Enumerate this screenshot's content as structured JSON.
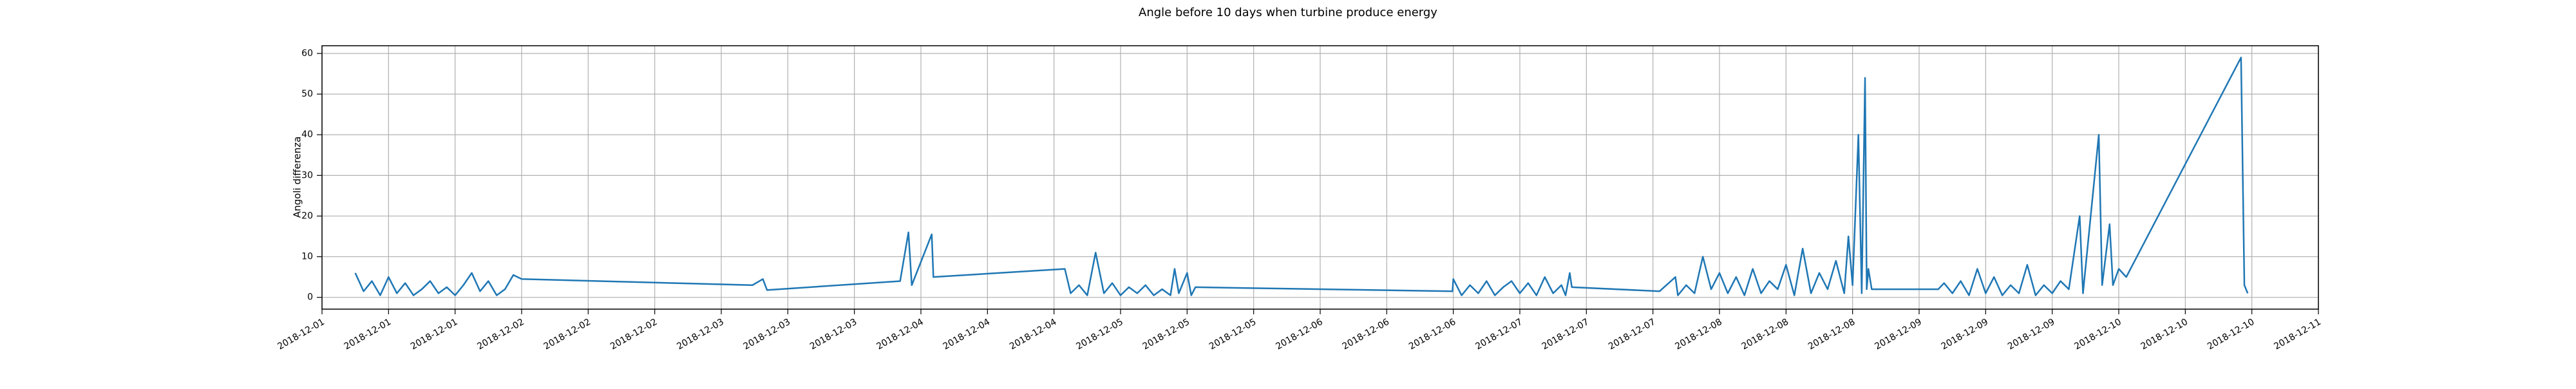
{
  "chart_data": {
    "type": "line",
    "title": "Angle before 10 days when turbine produce energy",
    "y_label": "Angoli differenza",
    "grid": true,
    "xlim": [
      "2018-12-01 00:00",
      "2018-12-11 00:00"
    ],
    "ylim": [
      -2.9,
      61.9
    ],
    "yticks": [
      0,
      10,
      20,
      30,
      40,
      50,
      60
    ],
    "xticks": [
      {
        "value": "2018-12-01 00:00",
        "label": "2018-12-01"
      },
      {
        "value": "2018-12-01 08:00",
        "label": "2018-12-01"
      },
      {
        "value": "2018-12-01 16:00",
        "label": "2018-12-01"
      },
      {
        "value": "2018-12-02 00:00",
        "label": "2018-12-02"
      },
      {
        "value": "2018-12-02 08:00",
        "label": "2018-12-02"
      },
      {
        "value": "2018-12-02 16:00",
        "label": "2018-12-02"
      },
      {
        "value": "2018-12-03 00:00",
        "label": "2018-12-03"
      },
      {
        "value": "2018-12-03 08:00",
        "label": "2018-12-03"
      },
      {
        "value": "2018-12-03 16:00",
        "label": "2018-12-03"
      },
      {
        "value": "2018-12-04 00:00",
        "label": "2018-12-04"
      },
      {
        "value": "2018-12-04 08:00",
        "label": "2018-12-04"
      },
      {
        "value": "2018-12-04 16:00",
        "label": "2018-12-04"
      },
      {
        "value": "2018-12-05 00:00",
        "label": "2018-12-05"
      },
      {
        "value": "2018-12-05 08:00",
        "label": "2018-12-05"
      },
      {
        "value": "2018-12-05 16:00",
        "label": "2018-12-05"
      },
      {
        "value": "2018-12-06 00:00",
        "label": "2018-12-06"
      },
      {
        "value": "2018-12-06 08:00",
        "label": "2018-12-06"
      },
      {
        "value": "2018-12-06 16:00",
        "label": "2018-12-06"
      },
      {
        "value": "2018-12-07 00:00",
        "label": "2018-12-07"
      },
      {
        "value": "2018-12-07 08:00",
        "label": "2018-12-07"
      },
      {
        "value": "2018-12-07 16:00",
        "label": "2018-12-07"
      },
      {
        "value": "2018-12-08 00:00",
        "label": "2018-12-08"
      },
      {
        "value": "2018-12-08 08:00",
        "label": "2018-12-08"
      },
      {
        "value": "2018-12-08 16:00",
        "label": "2018-12-08"
      },
      {
        "value": "2018-12-09 00:00",
        "label": "2018-12-09"
      },
      {
        "value": "2018-12-09 08:00",
        "label": "2018-12-09"
      },
      {
        "value": "2018-12-09 16:00",
        "label": "2018-12-09"
      },
      {
        "value": "2018-12-10 00:00",
        "label": "2018-12-10"
      },
      {
        "value": "2018-12-10 08:00",
        "label": "2018-12-10"
      },
      {
        "value": "2018-12-10 16:00",
        "label": "2018-12-10"
      },
      {
        "value": "2018-12-11 00:00",
        "label": "2018-12-11"
      }
    ],
    "x": [
      "2018-12-01 04:00",
      "2018-12-01 05:00",
      "2018-12-01 06:00",
      "2018-12-01 07:00",
      "2018-12-01 08:00",
      "2018-12-01 09:00",
      "2018-12-01 10:00",
      "2018-12-01 11:00",
      "2018-12-01 12:00",
      "2018-12-01 13:00",
      "2018-12-01 14:00",
      "2018-12-01 15:00",
      "2018-12-01 16:00",
      "2018-12-01 17:00",
      "2018-12-01 18:00",
      "2018-12-01 19:00",
      "2018-12-01 20:00",
      "2018-12-01 21:00",
      "2018-12-01 22:00",
      "2018-12-01 23:00",
      "2018-12-02 00:00",
      "2018-12-03 03:45",
      "2018-12-03 05:00",
      "2018-12-03 05:30",
      "2018-12-03 21:30",
      "2018-12-03 22:30",
      "2018-12-03 22:54",
      "2018-12-04 01:18",
      "2018-12-04 01:30",
      "2018-12-04 17:18",
      "2018-12-04 18:00",
      "2018-12-04 19:00",
      "2018-12-04 20:00",
      "2018-12-04 21:00",
      "2018-12-04 22:00",
      "2018-12-04 23:00",
      "2018-12-05 00:00",
      "2018-12-05 01:00",
      "2018-12-05 02:00",
      "2018-12-05 03:00",
      "2018-12-05 04:00",
      "2018-12-05 05:00",
      "2018-12-05 06:00",
      "2018-12-05 06:30",
      "2018-12-05 07:00",
      "2018-12-05 08:00",
      "2018-12-05 08:30",
      "2018-12-05 09:00",
      "2018-12-06 15:54",
      "2018-12-06 16:00",
      "2018-12-06 17:00",
      "2018-12-06 18:00",
      "2018-12-06 19:00",
      "2018-12-06 20:00",
      "2018-12-06 21:00",
      "2018-12-06 22:00",
      "2018-12-06 23:00",
      "2018-12-07 00:00",
      "2018-12-07 01:00",
      "2018-12-07 02:00",
      "2018-12-07 03:00",
      "2018-12-07 04:00",
      "2018-12-07 05:00",
      "2018-12-07 05:30",
      "2018-12-07 06:00",
      "2018-12-07 06:15",
      "2018-12-07 16:48",
      "2018-12-07 18:42",
      "2018-12-07 19:00",
      "2018-12-07 20:00",
      "2018-12-07 21:00",
      "2018-12-07 22:00",
      "2018-12-07 23:00",
      "2018-12-08 00:00",
      "2018-12-08 01:00",
      "2018-12-08 02:00",
      "2018-12-08 03:00",
      "2018-12-08 04:00",
      "2018-12-08 05:00",
      "2018-12-08 06:00",
      "2018-12-08 07:00",
      "2018-12-08 08:00",
      "2018-12-08 09:00",
      "2018-12-08 10:00",
      "2018-12-08 11:00",
      "2018-12-08 12:00",
      "2018-12-08 13:00",
      "2018-12-08 14:00",
      "2018-12-08 15:00",
      "2018-12-08 15:30",
      "2018-12-08 16:00",
      "2018-12-08 16:42",
      "2018-12-08 17:06",
      "2018-12-08 17:30",
      "2018-12-08 17:42",
      "2018-12-08 17:54",
      "2018-12-08 18:18",
      "2018-12-09 02:18",
      "2018-12-09 03:00",
      "2018-12-09 04:00",
      "2018-12-09 05:00",
      "2018-12-09 06:00",
      "2018-12-09 07:00",
      "2018-12-09 08:00",
      "2018-12-09 09:00",
      "2018-12-09 10:00",
      "2018-12-09 11:00",
      "2018-12-09 12:00",
      "2018-12-09 13:00",
      "2018-12-09 14:00",
      "2018-12-09 15:00",
      "2018-12-09 16:00",
      "2018-12-09 17:00",
      "2018-12-09 18:00",
      "2018-12-09 19:18",
      "2018-12-09 19:42",
      "2018-12-09 21:36",
      "2018-12-09 22:00",
      "2018-12-09 22:54",
      "2018-12-09 23:18",
      "2018-12-10 00:00",
      "2018-12-10 00:54",
      "2018-12-10 14:42",
      "2018-12-10 15:06",
      "2018-12-10 15:30"
    ],
    "series": [
      {
        "name": "Angoli differenza",
        "color": "#1f77b4",
        "values": [
          6,
          1.5,
          4,
          0.5,
          5,
          1,
          3.5,
          0.5,
          2,
          4,
          1,
          2.5,
          0.5,
          3,
          6,
          1.5,
          4,
          0.5,
          2,
          5.5,
          4.5,
          3,
          4.5,
          1.8,
          4,
          16,
          3,
          15.5,
          5,
          7,
          1,
          3,
          0.5,
          11,
          1,
          3.5,
          0.5,
          2.5,
          1,
          3,
          0.5,
          2,
          0.5,
          7,
          1,
          6,
          0.5,
          2.5,
          1.5,
          4.5,
          0.5,
          3,
          1,
          4,
          0.5,
          2.5,
          4,
          1,
          3.5,
          0.5,
          5,
          1,
          3,
          0.5,
          6,
          2.5,
          1.5,
          5,
          0.5,
          3,
          1,
          10,
          2,
          6,
          1,
          5,
          0.5,
          7,
          1,
          4,
          2,
          8,
          0.5,
          12,
          1,
          6,
          2,
          9,
          1,
          15,
          3,
          40,
          1,
          54,
          2,
          7,
          2,
          2,
          3.5,
          1,
          4,
          0.5,
          7,
          1,
          5,
          0.5,
          3,
          1,
          8,
          0.5,
          3,
          1,
          4,
          2,
          20,
          1,
          40,
          3,
          18,
          3,
          7,
          5,
          59,
          3,
          1
        ]
      }
    ]
  }
}
